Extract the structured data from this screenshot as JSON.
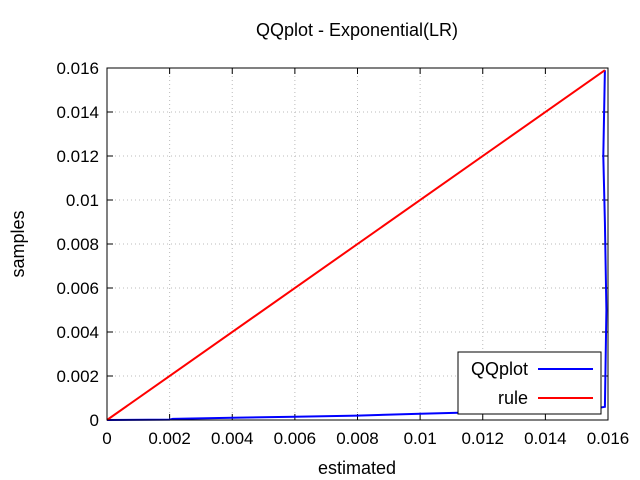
{
  "chart_data": {
    "type": "line",
    "title": "QQplot - Exponential(LR)",
    "xlabel": "estimated",
    "ylabel": "samples",
    "xlim": [
      0,
      0.016
    ],
    "ylim": [
      0,
      0.016
    ],
    "xticks": [
      0,
      0.002,
      0.004,
      0.006,
      0.008,
      0.01,
      0.012,
      0.014,
      0.016
    ],
    "xtick_labels": [
      "0",
      "0.002",
      "0.004",
      "0.006",
      "0.008",
      "0.01",
      "0.012",
      "0.014",
      "0.016"
    ],
    "yticks": [
      0,
      0.002,
      0.004,
      0.006,
      0.008,
      0.01,
      0.012,
      0.014,
      0.016
    ],
    "ytick_labels": [
      "0",
      "0.002",
      "0.004",
      "0.006",
      "0.008",
      "0.01",
      "0.012",
      "0.014",
      "0.016"
    ],
    "grid": true,
    "legend_position": "bottom-right",
    "series": [
      {
        "name": "QQplot",
        "color": "#0000ff",
        "x": [
          0.0,
          0.002,
          0.0021,
          0.004,
          0.006,
          0.008,
          0.01,
          0.012,
          0.014,
          0.0157,
          0.0159,
          0.01595,
          0.0159,
          0.01585,
          0.0159
        ],
        "y": [
          0.0,
          2e-05,
          5e-05,
          0.0001,
          0.00015,
          0.0002,
          0.00028,
          0.00036,
          0.00045,
          0.00055,
          0.0006,
          0.005,
          0.009,
          0.012,
          0.0159
        ]
      },
      {
        "name": "rule",
        "color": "#ff0000",
        "x": [
          0,
          0.0159
        ],
        "y": [
          0,
          0.0159
        ]
      }
    ]
  }
}
